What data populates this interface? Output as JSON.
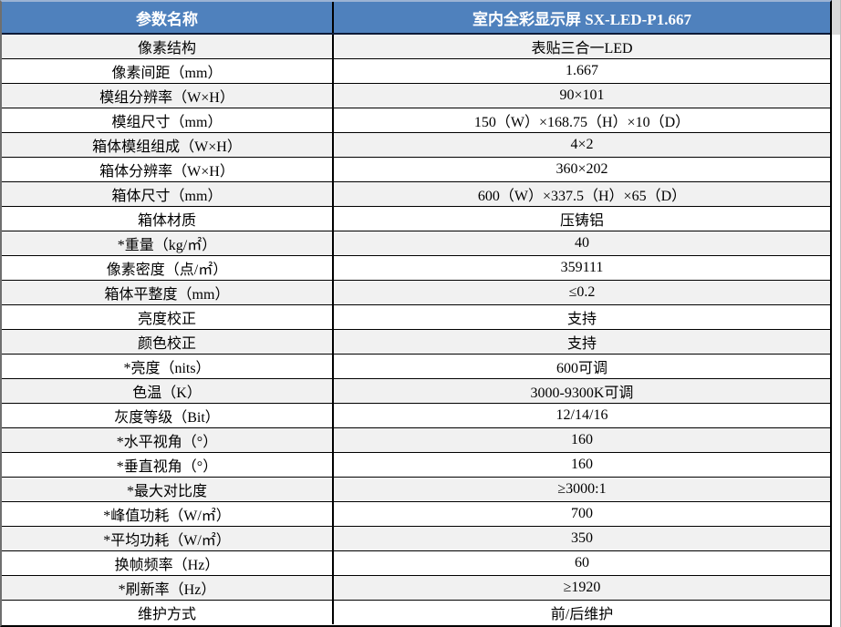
{
  "colors": {
    "header_bg": "#4f81bd",
    "header_text": "#ffffff",
    "stripe_bg": "#f1f1f1",
    "grid_border": "#000000",
    "top_edge": "#9cb3d4",
    "left_edge": "#6f6f6f",
    "gutter": "#d9d9d9"
  },
  "table": {
    "header": {
      "param_col": "参数名称",
      "product_col": "室内全彩显示屏 SX-LED-P1.667"
    },
    "rows": [
      {
        "label": "像素结构",
        "value": "表贴三合一LED"
      },
      {
        "label": "像素间距（mm）",
        "value": "1.667"
      },
      {
        "label": "模组分辨率（W×H）",
        "value": "90×101"
      },
      {
        "label": "模组尺寸（mm）",
        "value": "150（W）×168.75（H）×10（D）"
      },
      {
        "label": "箱体模组组成（W×H）",
        "value": "4×2"
      },
      {
        "label": "箱体分辨率（W×H）",
        "value": "360×202"
      },
      {
        "label": "箱体尺寸（mm）",
        "value": "600（W）×337.5（H）×65（D）"
      },
      {
        "label": "箱体材质",
        "value": "压铸铝"
      },
      {
        "label": "*重量（kg/㎡）",
        "value": "40"
      },
      {
        "label": "像素密度（点/㎡）",
        "value": "359111"
      },
      {
        "label": "箱体平整度（mm）",
        "value": "≤0.2"
      },
      {
        "label": "亮度校正",
        "value": "支持"
      },
      {
        "label": "颜色校正",
        "value": "支持"
      },
      {
        "label": "*亮度（nits）",
        "value": "600可调"
      },
      {
        "label": "色温（K）",
        "value": "3000-9300K可调"
      },
      {
        "label": "灰度等级（Bit）",
        "value": "12/14/16"
      },
      {
        "label": "*水平视角（°）",
        "value": "160"
      },
      {
        "label": "*垂直视角（°）",
        "value": "160"
      },
      {
        "label": "*最大对比度",
        "value": "≥3000:1"
      },
      {
        "label": "*峰值功耗（W/㎡）",
        "value": "700"
      },
      {
        "label": "*平均功耗（W/㎡）",
        "value": "350"
      },
      {
        "label": "换帧频率（Hz）",
        "value": "60"
      },
      {
        "label": "*刷新率（Hz）",
        "value": "≥1920"
      },
      {
        "label": "维护方式",
        "value": "前/后维护"
      }
    ]
  }
}
